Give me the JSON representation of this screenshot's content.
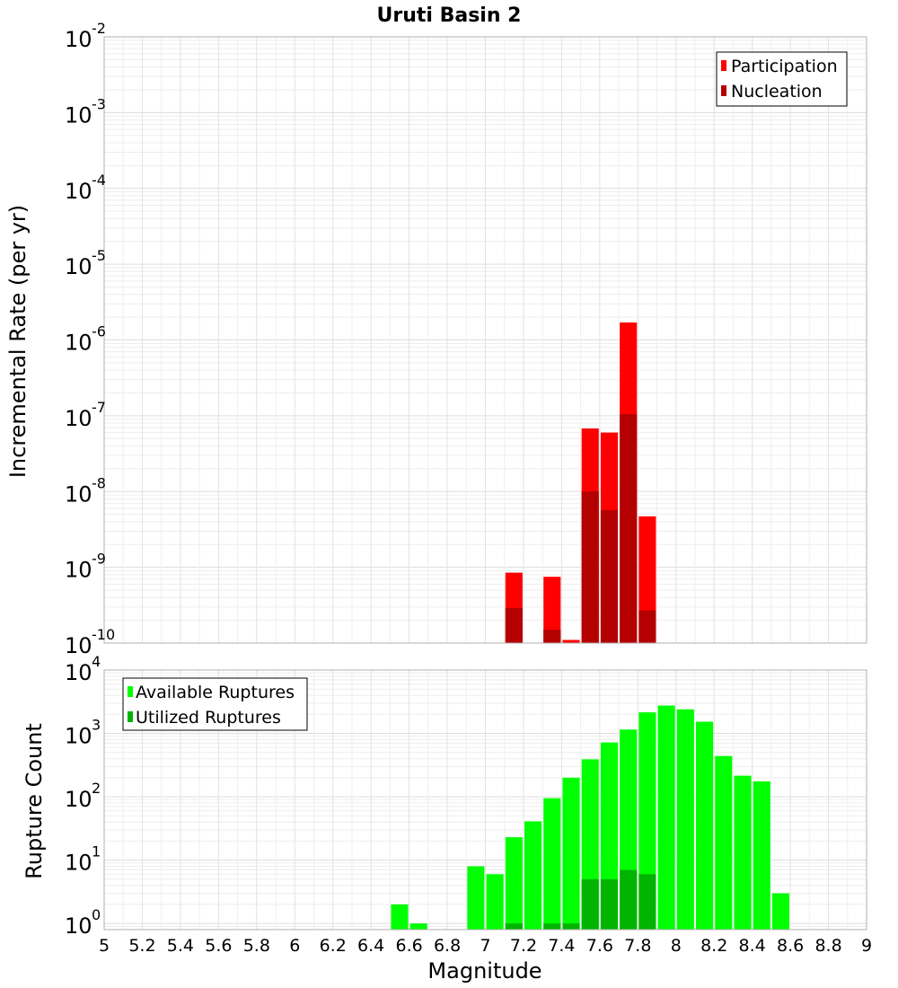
{
  "chart_data": [
    {
      "type": "bar",
      "title": "Uruti Basin 2",
      "ylabel": "Incremental Rate (per yr)",
      "xlabel": "",
      "xlim": [
        5,
        9
      ],
      "ylim": [
        1e-10,
        0.01
      ],
      "yscale": "log",
      "bar_width": 0.09,
      "grid": true,
      "legend_position": "top-right",
      "x": [
        7.15,
        7.35,
        7.45,
        7.55,
        7.65,
        7.75,
        7.85
      ],
      "series": [
        {
          "name": "Participation",
          "color": "#ff0000",
          "values": [
            8.5e-10,
            7.5e-10,
            1.1e-10,
            6.8e-08,
            6e-08,
            1.7e-06,
            4.7e-09
          ]
        },
        {
          "name": "Nucleation",
          "color": "#b40000",
          "values": [
            2.9e-10,
            1.5e-10,
            null,
            1e-08,
            5.7e-09,
            1.05e-07,
            2.7e-10
          ]
        }
      ],
      "y_ticks": [
        {
          "base": "10",
          "exp": "-10"
        },
        {
          "base": "10",
          "exp": "-9"
        },
        {
          "base": "10",
          "exp": "-8"
        },
        {
          "base": "10",
          "exp": "-7"
        },
        {
          "base": "10",
          "exp": "-6"
        },
        {
          "base": "10",
          "exp": "-5"
        },
        {
          "base": "10",
          "exp": "-4"
        },
        {
          "base": "10",
          "exp": "-3"
        },
        {
          "base": "10",
          "exp": "-2"
        }
      ]
    },
    {
      "type": "bar",
      "title": "",
      "ylabel": "Rupture Count",
      "xlabel": "Magnitude",
      "xlim": [
        5,
        9
      ],
      "ylim": [
        0.8,
        10000
      ],
      "yscale": "log",
      "bar_width": 0.09,
      "grid": true,
      "legend_position": "top-left",
      "x": [
        6.55,
        6.65,
        6.95,
        7.05,
        7.15,
        7.25,
        7.35,
        7.45,
        7.55,
        7.65,
        7.75,
        7.85,
        7.95,
        8.05,
        8.15,
        8.25,
        8.35,
        8.45,
        8.55
      ],
      "series": [
        {
          "name": "Available Ruptures",
          "color": "#00ff00",
          "values": [
            2,
            1,
            8,
            6,
            23,
            41,
            95,
            200,
            390,
            720,
            1150,
            2150,
            2750,
            2400,
            1530,
            440,
            215,
            175,
            3
          ]
        },
        {
          "name": "Utilized Ruptures",
          "color": "#00b400",
          "values": [
            null,
            null,
            null,
            null,
            1,
            null,
            1,
            1,
            5,
            5,
            7,
            6,
            null,
            null,
            null,
            null,
            null,
            null,
            null
          ]
        }
      ],
      "y_ticks": [
        {
          "base": "10",
          "exp": "0"
        },
        {
          "base": "10",
          "exp": "1"
        },
        {
          "base": "10",
          "exp": "2"
        },
        {
          "base": "10",
          "exp": "3"
        },
        {
          "base": "10",
          "exp": "4"
        }
      ],
      "x_tick_labels": [
        "5",
        "5.2",
        "5.4",
        "5.6",
        "5.8",
        "6",
        "6.2",
        "6.4",
        "6.6",
        "6.8",
        "7",
        "7.2",
        "7.4",
        "7.6",
        "7.8",
        "8",
        "8.2",
        "8.4",
        "8.6",
        "8.8",
        "9"
      ]
    }
  ]
}
